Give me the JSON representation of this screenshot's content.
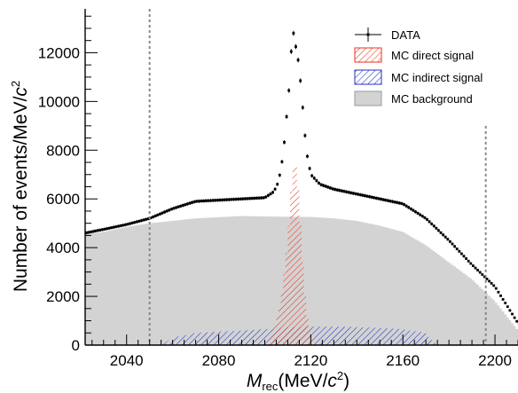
{
  "chart_data": {
    "type": "histogram",
    "xlabel": {
      "main": "M",
      "sub": "rec",
      "unit_pre": "(MeV/",
      "unit_var": "c",
      "unit_sup": "2",
      "unit_post": ")"
    },
    "ylabel": {
      "main": "Number of events/MeV/",
      "var": "c",
      "sup": "2"
    },
    "xlim": [
      2022,
      2210
    ],
    "ylim": [
      0,
      13800
    ],
    "x_ticks": [
      2040,
      2080,
      2120,
      2160,
      2200
    ],
    "y_ticks": [
      0,
      2000,
      4000,
      6000,
      8000,
      10000,
      12000
    ],
    "cut_lines_x": [
      2050,
      2196
    ],
    "colors": {
      "background": "#d3d3d3",
      "direct": "#e8321e",
      "indirect": "#2030c0",
      "data": "#000000"
    },
    "legend": {
      "position": "top-right",
      "entries": [
        "DATA",
        "MC direct signal",
        "MC indirect signal",
        "MC background"
      ]
    },
    "series": [
      {
        "name": "MC background",
        "style": "filled",
        "x": [
          2022,
          2030,
          2040,
          2050,
          2060,
          2070,
          2080,
          2090,
          2100,
          2110,
          2120,
          2130,
          2140,
          2150,
          2160,
          2170,
          2180,
          2190,
          2200,
          2210
        ],
        "y": [
          4550,
          4650,
          4850,
          5000,
          5100,
          5200,
          5250,
          5300,
          5280,
          5270,
          5260,
          5200,
          5100,
          4900,
          4650,
          4100,
          3400,
          2700,
          1800,
          600
        ]
      },
      {
        "name": "MC indirect signal",
        "style": "hatched",
        "x": [
          2055,
          2060,
          2070,
          2080,
          2090,
          2100,
          2110,
          2120,
          2130,
          2140,
          2150,
          2160,
          2170,
          2173,
          2176
        ],
        "y": [
          0,
          300,
          500,
          550,
          600,
          650,
          720,
          760,
          760,
          740,
          700,
          650,
          500,
          150,
          0
        ]
      },
      {
        "name": "MC direct signal",
        "style": "hatched",
        "x": [
          2102,
          2104,
          2106,
          2108,
          2110,
          2111,
          2112,
          2113,
          2114,
          2115,
          2116,
          2117,
          2118,
          2120,
          2122
        ],
        "y": [
          300,
          700,
          1300,
          2500,
          4200,
          5600,
          7000,
          7600,
          7200,
          5800,
          4200,
          2600,
          1400,
          500,
          100
        ]
      },
      {
        "name": "DATA",
        "style": "points",
        "x": [
          2022,
          2030,
          2040,
          2050,
          2060,
          2070,
          2080,
          2090,
          2100,
          2104,
          2106,
          2108,
          2110,
          2111,
          2112,
          2113,
          2114,
          2115,
          2116,
          2117,
          2118,
          2120,
          2124,
          2130,
          2140,
          2150,
          2160,
          2170,
          2180,
          2190,
          2200,
          2210
        ],
        "y": [
          4600,
          4750,
          4950,
          5200,
          5600,
          5900,
          5950,
          6000,
          6050,
          6300,
          6700,
          7800,
          9900,
          11000,
          13100,
          12500,
          12000,
          11400,
          10300,
          9200,
          8000,
          7000,
          6600,
          6400,
          6200,
          6000,
          5800,
          5200,
          4300,
          3300,
          2400,
          900
        ]
      }
    ]
  }
}
